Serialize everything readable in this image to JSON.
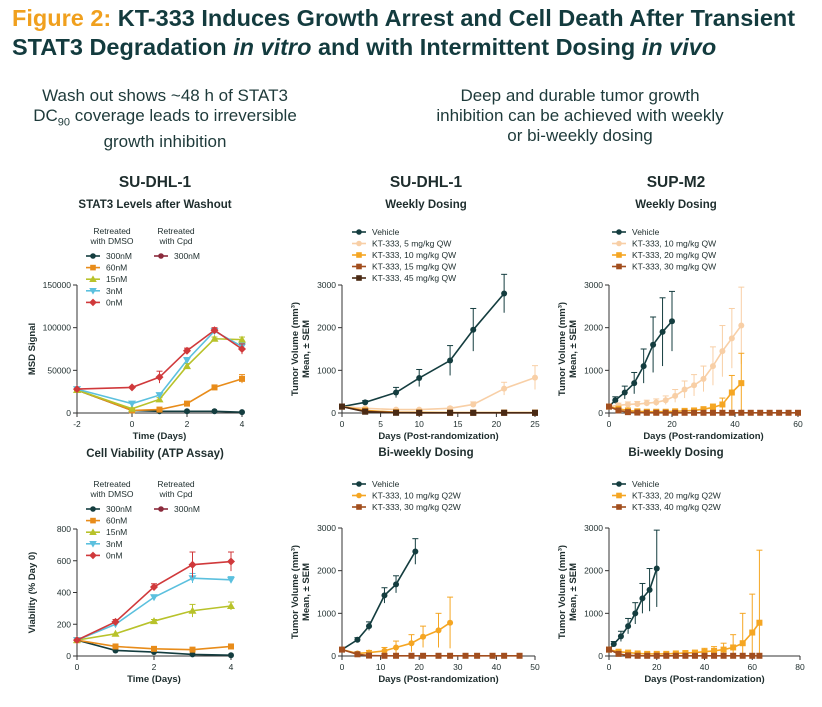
{
  "page": {
    "title_prefix": "Figure 2:",
    "title_part1": " KT-333 Induces Growth Arrest and Cell Death After Transient STAT3 Degradation ",
    "title_italic1": "in vitro",
    "title_part2": " and with Intermittent Dosing ",
    "title_italic2": "in vivo",
    "left_heading_line1": "Wash out shows ~48 h of STAT3",
    "left_heading_dc": "DC",
    "left_heading_sub": "90",
    "left_heading_line2": " coverage leads to irreversible",
    "left_heading_line3": "growth inhibition",
    "right_heading_line1": "Deep and durable tumor growth",
    "right_heading_line2": "inhibition can be achieved with weekly",
    "right_heading_line3": "or bi-weekly dosing",
    "col_titles": [
      "SU-DHL-1",
      "SU-DHL-1",
      "SUP-M2"
    ]
  },
  "chart_data": [
    {
      "id": "stat3",
      "type": "line",
      "title": "STAT3 Levels after Washout",
      "xlabel": "Time (Days)",
      "ylabel": "MSD Signal",
      "xlim": [
        -2,
        4
      ],
      "ylim": [
        0,
        150000
      ],
      "xticks": [
        -2,
        0,
        2,
        4
      ],
      "yticks": [
        0,
        50000,
        100000,
        150000
      ],
      "ytick_labels": [
        "0",
        "50000",
        "100000",
        "150000"
      ],
      "legend_group1": [
        "Retreated",
        "with DMSO"
      ],
      "legend_group2": [
        "Retreated",
        "with Cpd"
      ],
      "series": [
        {
          "name": "300nM",
          "group": "DMSO",
          "color": "#143d3f",
          "marker": "circle",
          "x": [
            -2,
            0,
            1,
            2,
            3,
            4
          ],
          "y": [
            27000,
            3000,
            2000,
            2000,
            2000,
            1000
          ]
        },
        {
          "name": "60nM",
          "group": "DMSO",
          "color": "#e88c1a",
          "marker": "square",
          "x": [
            -2,
            0,
            1,
            2,
            3,
            4
          ],
          "y": [
            27000,
            3000,
            4000,
            11000,
            30000,
            40000
          ],
          "err": [
            0,
            0,
            0,
            0,
            2000,
            5000
          ]
        },
        {
          "name": "15nM",
          "group": "DMSO",
          "color": "#b8c22a",
          "marker": "triangle",
          "x": [
            -2,
            0,
            1,
            2,
            3,
            4
          ],
          "y": [
            27000,
            5000,
            16000,
            55000,
            87000,
            86000
          ],
          "err": [
            0,
            0,
            2000,
            3000,
            2000,
            3000
          ]
        },
        {
          "name": "3nM",
          "group": "DMSO",
          "color": "#5bc0de",
          "marker": "triangle-down",
          "x": [
            -2,
            0,
            1,
            2,
            3,
            4
          ],
          "y": [
            28000,
            11000,
            21000,
            62000,
            96000,
            78000
          ],
          "err": [
            0,
            2000,
            2000,
            3000,
            3000,
            4000
          ]
        },
        {
          "name": "0nM",
          "group": "DMSO",
          "color": "#d0393b",
          "marker": "diamond",
          "x": [
            -2,
            0,
            1,
            2,
            3,
            4
          ],
          "y": [
            28000,
            30000,
            42000,
            73000,
            97000,
            75000
          ],
          "err": [
            0,
            0,
            7000,
            3000,
            3000,
            6000
          ]
        },
        {
          "name": "300nM",
          "group": "Cpd",
          "color": "#8b2a3c",
          "marker": "circle",
          "x": [],
          "y": []
        }
      ]
    },
    {
      "id": "viability",
      "type": "line",
      "title": "Cell Viability (ATP Assay)",
      "xlabel": "Time (Days)",
      "ylabel": "Viability (% Day 0)",
      "xlim": [
        0,
        4
      ],
      "ylim": [
        0,
        800
      ],
      "xticks": [
        0,
        2,
        4
      ],
      "yticks": [
        0,
        200,
        400,
        600,
        800
      ],
      "ytick_labels": [
        "0",
        "200",
        "400",
        "600",
        "800"
      ],
      "legend_group1": [
        "Retreated",
        "with DMSO"
      ],
      "legend_group2": [
        "Retreated",
        "with Cpd"
      ],
      "series": [
        {
          "name": "300nM",
          "group": "DMSO",
          "color": "#143d3f",
          "marker": "circle",
          "x": [
            0,
            1,
            2,
            3,
            4
          ],
          "y": [
            100,
            35,
            25,
            10,
            5
          ]
        },
        {
          "name": "60nM",
          "group": "DMSO",
          "color": "#e88c1a",
          "marker": "square",
          "x": [
            0,
            1,
            2,
            3,
            4
          ],
          "y": [
            100,
            60,
            45,
            40,
            60
          ]
        },
        {
          "name": "15nM",
          "group": "DMSO",
          "color": "#b8c22a",
          "marker": "triangle",
          "x": [
            0,
            1,
            2,
            3,
            4
          ],
          "y": [
            100,
            140,
            220,
            285,
            315
          ],
          "err": [
            0,
            0,
            10,
            40,
            25
          ]
        },
        {
          "name": "3nM",
          "group": "DMSO",
          "color": "#5bc0de",
          "marker": "triangle-down",
          "x": [
            0,
            1,
            2,
            3,
            4
          ],
          "y": [
            100,
            200,
            370,
            490,
            480
          ],
          "err": [
            0,
            10,
            15,
            30,
            20
          ]
        },
        {
          "name": "0nM",
          "group": "DMSO",
          "color": "#d0393b",
          "marker": "diamond",
          "x": [
            0,
            1,
            2,
            3,
            4
          ],
          "y": [
            100,
            215,
            435,
            575,
            595
          ],
          "err": [
            0,
            15,
            20,
            80,
            60
          ]
        },
        {
          "name": "300nM",
          "group": "Cpd",
          "color": "#8b2a3c",
          "marker": "circle",
          "x": [],
          "y": []
        }
      ]
    },
    {
      "id": "sudhl1_weekly",
      "type": "line",
      "title": "Weekly Dosing",
      "xlabel": "Days (Post-randomization)",
      "ylabel": [
        "Tumor Volume (mm³)",
        "Mean, ± SEM"
      ],
      "xlim": [
        0,
        25
      ],
      "ylim": [
        0,
        3000
      ],
      "xticks": [
        0,
        5,
        10,
        15,
        20,
        25
      ],
      "yticks": [
        0,
        1000,
        2000,
        3000
      ],
      "ytick_labels": [
        "0",
        "1000",
        "2000",
        "3000"
      ],
      "series": [
        {
          "name": "Vehicle",
          "color": "#143d3f",
          "marker": "circle",
          "x": [
            0,
            3,
            7,
            10,
            14,
            17,
            21
          ],
          "y": [
            150,
            250,
            480,
            820,
            1230,
            1950,
            2800
          ],
          "err": [
            0,
            40,
            120,
            200,
            350,
            500,
            450
          ]
        },
        {
          "name": "KT-333, 5 mg/kg QW",
          "color": "#f8cfa6",
          "marker": "circle",
          "x": [
            0,
            3,
            7,
            10,
            14,
            17,
            21,
            25
          ],
          "y": [
            150,
            110,
            80,
            80,
            110,
            200,
            570,
            830
          ],
          "err": [
            0,
            20,
            20,
            20,
            30,
            60,
            150,
            280
          ]
        },
        {
          "name": "KT-333, 10 mg/kg QW",
          "color": "#f5a623",
          "marker": "square",
          "x": [
            0,
            3,
            7,
            10,
            14,
            17,
            21,
            25
          ],
          "y": [
            150,
            60,
            20,
            15,
            10,
            10,
            10,
            10
          ]
        },
        {
          "name": "KT-333, 15 mg/kg QW",
          "color": "#a24e1e",
          "marker": "square",
          "x": [
            0,
            3,
            7,
            10,
            14,
            17,
            21,
            25
          ],
          "y": [
            150,
            40,
            10,
            5,
            5,
            5,
            5,
            5
          ]
        },
        {
          "name": "KT-333, 45 mg/kg QW",
          "color": "#4a2a14",
          "marker": "square",
          "x": [
            0,
            3,
            7,
            10,
            14,
            17,
            21,
            25
          ],
          "y": [
            150,
            30,
            5,
            5,
            5,
            5,
            5,
            5
          ]
        }
      ]
    },
    {
      "id": "supm2_weekly",
      "type": "line",
      "title": "Weekly Dosing",
      "xlabel": "Days (Post-randomization)",
      "ylabel": [
        "Tumor Volume (mm³)",
        "Mean, ± SEM"
      ],
      "xlim": [
        0,
        60
      ],
      "ylim": [
        0,
        3000
      ],
      "xticks": [
        0,
        20,
        40,
        60
      ],
      "yticks": [
        0,
        1000,
        2000,
        3000
      ],
      "ytick_labels": [
        "0",
        "1000",
        "2000",
        "3000"
      ],
      "series": [
        {
          "name": "Vehicle",
          "color": "#143d3f",
          "marker": "circle",
          "x": [
            0,
            2,
            5,
            8,
            11,
            14,
            17,
            20
          ],
          "y": [
            150,
            300,
            480,
            700,
            1100,
            1600,
            1900,
            2150
          ],
          "err": [
            0,
            80,
            150,
            250,
            400,
            650,
            800,
            700
          ]
        },
        {
          "name": "KT-333, 10 mg/kg QW",
          "color": "#f8cfa6",
          "marker": "circle",
          "x": [
            0,
            3,
            6,
            9,
            12,
            15,
            18,
            21,
            24,
            27,
            30,
            33,
            36,
            39,
            42
          ],
          "y": [
            150,
            180,
            200,
            210,
            230,
            250,
            300,
            400,
            550,
            650,
            800,
            1100,
            1450,
            1750,
            2050
          ],
          "err": [
            0,
            50,
            60,
            60,
            70,
            80,
            100,
            150,
            200,
            250,
            300,
            450,
            600,
            700,
            900
          ]
        },
        {
          "name": "KT-333, 20 mg/kg QW",
          "color": "#f5a623",
          "marker": "square",
          "x": [
            0,
            3,
            6,
            9,
            12,
            15,
            18,
            21,
            24,
            27,
            30,
            33,
            36,
            39,
            42
          ],
          "y": [
            150,
            100,
            60,
            40,
            30,
            30,
            30,
            40,
            50,
            60,
            90,
            130,
            200,
            480,
            700
          ],
          "err": [
            0,
            20,
            15,
            10,
            10,
            10,
            10,
            15,
            20,
            30,
            50,
            80,
            150,
            400,
            700
          ]
        },
        {
          "name": "KT-333, 30 mg/kg QW",
          "color": "#a24e1e",
          "marker": "square",
          "x": [
            0,
            3,
            6,
            9,
            12,
            15,
            18,
            21,
            24,
            27,
            30,
            33,
            36,
            39,
            42,
            45,
            48,
            51,
            54,
            57,
            60
          ],
          "y": [
            150,
            60,
            20,
            10,
            5,
            5,
            5,
            5,
            5,
            5,
            5,
            5,
            5,
            5,
            5,
            5,
            5,
            5,
            5,
            5,
            5
          ]
        }
      ]
    },
    {
      "id": "sudhl1_biweekly",
      "type": "line",
      "title": "Bi-weekly Dosing",
      "xlabel": "Days (Post-randomization)",
      "ylabel": [
        "Tumor Volume (mm³)",
        "Mean, ± SEM"
      ],
      "xlim": [
        0,
        50
      ],
      "ylim": [
        0,
        3000
      ],
      "xticks": [
        0,
        10,
        20,
        30,
        40,
        50
      ],
      "yticks": [
        0,
        1000,
        2000,
        3000
      ],
      "ytick_labels": [
        "0",
        "1000",
        "2000",
        "3000"
      ],
      "series": [
        {
          "name": "Vehicle",
          "color": "#143d3f",
          "marker": "circle",
          "x": [
            0,
            4,
            7,
            11,
            14,
            19
          ],
          "y": [
            150,
            380,
            700,
            1420,
            1680,
            2450
          ],
          "err": [
            0,
            50,
            100,
            180,
            200,
            300
          ]
        },
        {
          "name": "KT-333, 10 mg/kg Q2W",
          "color": "#f5a623",
          "marker": "circle",
          "x": [
            0,
            4,
            7,
            11,
            14,
            18,
            21,
            25,
            28
          ],
          "y": [
            150,
            60,
            80,
            120,
            200,
            300,
            450,
            600,
            780
          ],
          "err": [
            0,
            20,
            50,
            80,
            150,
            200,
            250,
            400,
            600
          ]
        },
        {
          "name": "KT-333, 30 mg/kg Q2W",
          "color": "#a24e1e",
          "marker": "square",
          "x": [
            0,
            4,
            7,
            11,
            14,
            18,
            21,
            25,
            28,
            32,
            35,
            39,
            42,
            46
          ],
          "y": [
            150,
            40,
            10,
            5,
            5,
            5,
            5,
            5,
            5,
            5,
            5,
            5,
            5,
            5
          ]
        }
      ]
    },
    {
      "id": "supm2_biweekly",
      "type": "line",
      "title": "Bi-weekly Dosing",
      "xlabel": "Days (Post-randomization)",
      "ylabel": [
        "Tumor Volume (mm³)",
        "Mean, ± SEM"
      ],
      "xlim": [
        0,
        80
      ],
      "ylim": [
        0,
        3000
      ],
      "xticks": [
        0,
        20,
        40,
        60,
        80
      ],
      "yticks": [
        0,
        1000,
        2000,
        3000
      ],
      "ytick_labels": [
        "0",
        "1000",
        "2000",
        "3000"
      ],
      "series": [
        {
          "name": "Vehicle",
          "color": "#143d3f",
          "marker": "circle",
          "x": [
            0,
            2,
            5,
            8,
            11,
            14,
            17,
            20
          ],
          "y": [
            150,
            280,
            460,
            700,
            1000,
            1350,
            1550,
            2050
          ],
          "err": [
            0,
            60,
            120,
            180,
            250,
            350,
            500,
            900
          ]
        },
        {
          "name": "KT-333, 20 mg/kg Q2W",
          "color": "#f5a623",
          "marker": "square",
          "x": [
            0,
            4,
            8,
            12,
            16,
            20,
            24,
            28,
            32,
            36,
            40,
            44,
            48,
            52,
            56,
            60,
            63
          ],
          "y": [
            150,
            100,
            80,
            60,
            50,
            50,
            50,
            60,
            70,
            80,
            100,
            120,
            150,
            200,
            300,
            550,
            780
          ],
          "err": [
            0,
            30,
            30,
            20,
            20,
            20,
            20,
            30,
            40,
            50,
            80,
            100,
            150,
            300,
            700,
            900,
            1700
          ]
        },
        {
          "name": "KT-333, 40 mg/kg Q2W",
          "color": "#a24e1e",
          "marker": "square",
          "x": [
            0,
            4,
            8,
            12,
            16,
            20,
            24,
            28,
            32,
            36,
            40,
            44,
            48,
            52,
            56,
            60,
            63
          ],
          "y": [
            150,
            50,
            15,
            5,
            5,
            5,
            5,
            5,
            5,
            5,
            5,
            5,
            5,
            5,
            5,
            5,
            5
          ]
        }
      ]
    }
  ]
}
